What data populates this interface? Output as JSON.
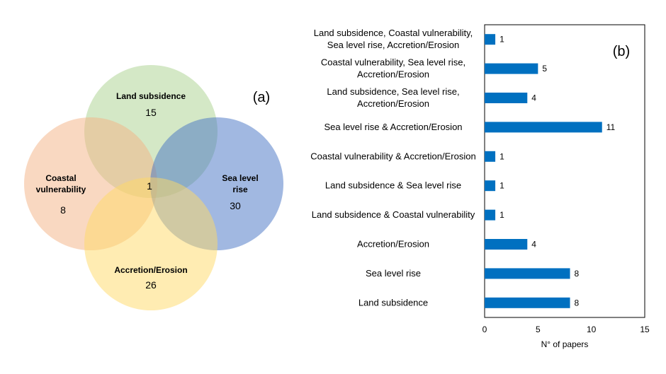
{
  "venn": {
    "panel_label": "(a)",
    "sets": [
      {
        "id": "land",
        "label_lines": [
          "Land subsidence"
        ],
        "count": "15",
        "color": "#a9d18e"
      },
      {
        "id": "coastal",
        "label_lines": [
          "Coastal",
          "vulnerability"
        ],
        "count": "8",
        "color": "#f4b183"
      },
      {
        "id": "sea",
        "label_lines": [
          "Sea level",
          "rise"
        ],
        "count": "30",
        "color": "#4472c4"
      },
      {
        "id": "accretion",
        "label_lines": [
          "Accretion/Erosion"
        ],
        "count": "26",
        "color": "#ffd966"
      }
    ],
    "center_count": "1"
  },
  "chart_data": {
    "type": "bar",
    "orientation": "horizontal",
    "panel_label": "(b)",
    "xlabel": "N° of papers",
    "xlim": [
      0,
      15
    ],
    "xticks": [
      0,
      5,
      10,
      15
    ],
    "bar_color": "#0070c0",
    "categories": [
      [
        "Land subsidence, Coastal vulnerability,",
        "Sea level rise, Accretion/Erosion"
      ],
      [
        "Coastal vulnerability, Sea level rise,",
        "Accretion/Erosion"
      ],
      [
        "Land subsidence, Sea level rise,",
        "Accretion/Erosion"
      ],
      [
        "Sea level rise & Accretion/Erosion"
      ],
      [
        "Coastal vulnerability & Accretion/Erosion"
      ],
      [
        "Land subsidence & Sea level rise"
      ],
      [
        "Land subsidence & Coastal vulnerability"
      ],
      [
        "Accretion/Erosion"
      ],
      [
        "Sea level rise"
      ],
      [
        "Land subsidence"
      ]
    ],
    "values": [
      1,
      5,
      4,
      11,
      1,
      1,
      1,
      4,
      8,
      8
    ]
  }
}
